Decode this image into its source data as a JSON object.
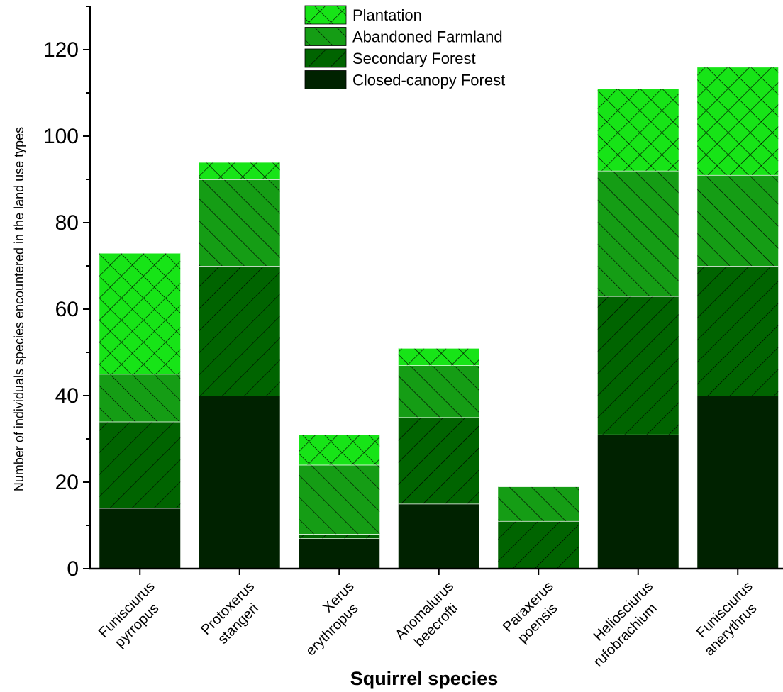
{
  "chart_data": {
    "type": "bar",
    "stacked": true,
    "xlabel": "Squirrel species",
    "ylabel": "Number of individuals species encountered in the land use types",
    "ylim": [
      0,
      130
    ],
    "yticks": [
      0,
      20,
      40,
      60,
      80,
      100,
      120
    ],
    "categories": [
      [
        "Funisciurus",
        "pyrropus"
      ],
      [
        "Protoxerus",
        "stangeri"
      ],
      [
        "Xerus",
        "erythropus"
      ],
      [
        "Anomalurus",
        "beecrofti"
      ],
      [
        "Paraxerus",
        "poensis"
      ],
      [
        "Heliosciurus",
        "rufobrachium"
      ],
      [
        "Funisciurus",
        "anerythrus"
      ]
    ],
    "series": [
      {
        "name": "Closed-canopy Forest",
        "color": "#002200",
        "pattern": "none",
        "values": [
          14,
          40,
          7,
          15,
          0,
          31,
          40
        ]
      },
      {
        "name": "Secondary Forest",
        "color": "#006400",
        "pattern": "forward-diagonal",
        "values": [
          20,
          30,
          1,
          20,
          11,
          32,
          30
        ]
      },
      {
        "name": "Abandoned Farmland",
        "color": "#159d15",
        "pattern": "back-diagonal",
        "values": [
          11,
          20,
          16,
          12,
          8,
          29,
          21
        ]
      },
      {
        "name": "Plantation",
        "color": "#17e417",
        "pattern": "crosshatch",
        "values": [
          28,
          4,
          7,
          4,
          0,
          19,
          25
        ]
      }
    ],
    "legend_order": [
      "Plantation",
      "Abandoned Farmland",
      "Secondary Forest",
      "Closed-canopy Forest"
    ],
    "legend_position": "top-center",
    "grid": false
  }
}
